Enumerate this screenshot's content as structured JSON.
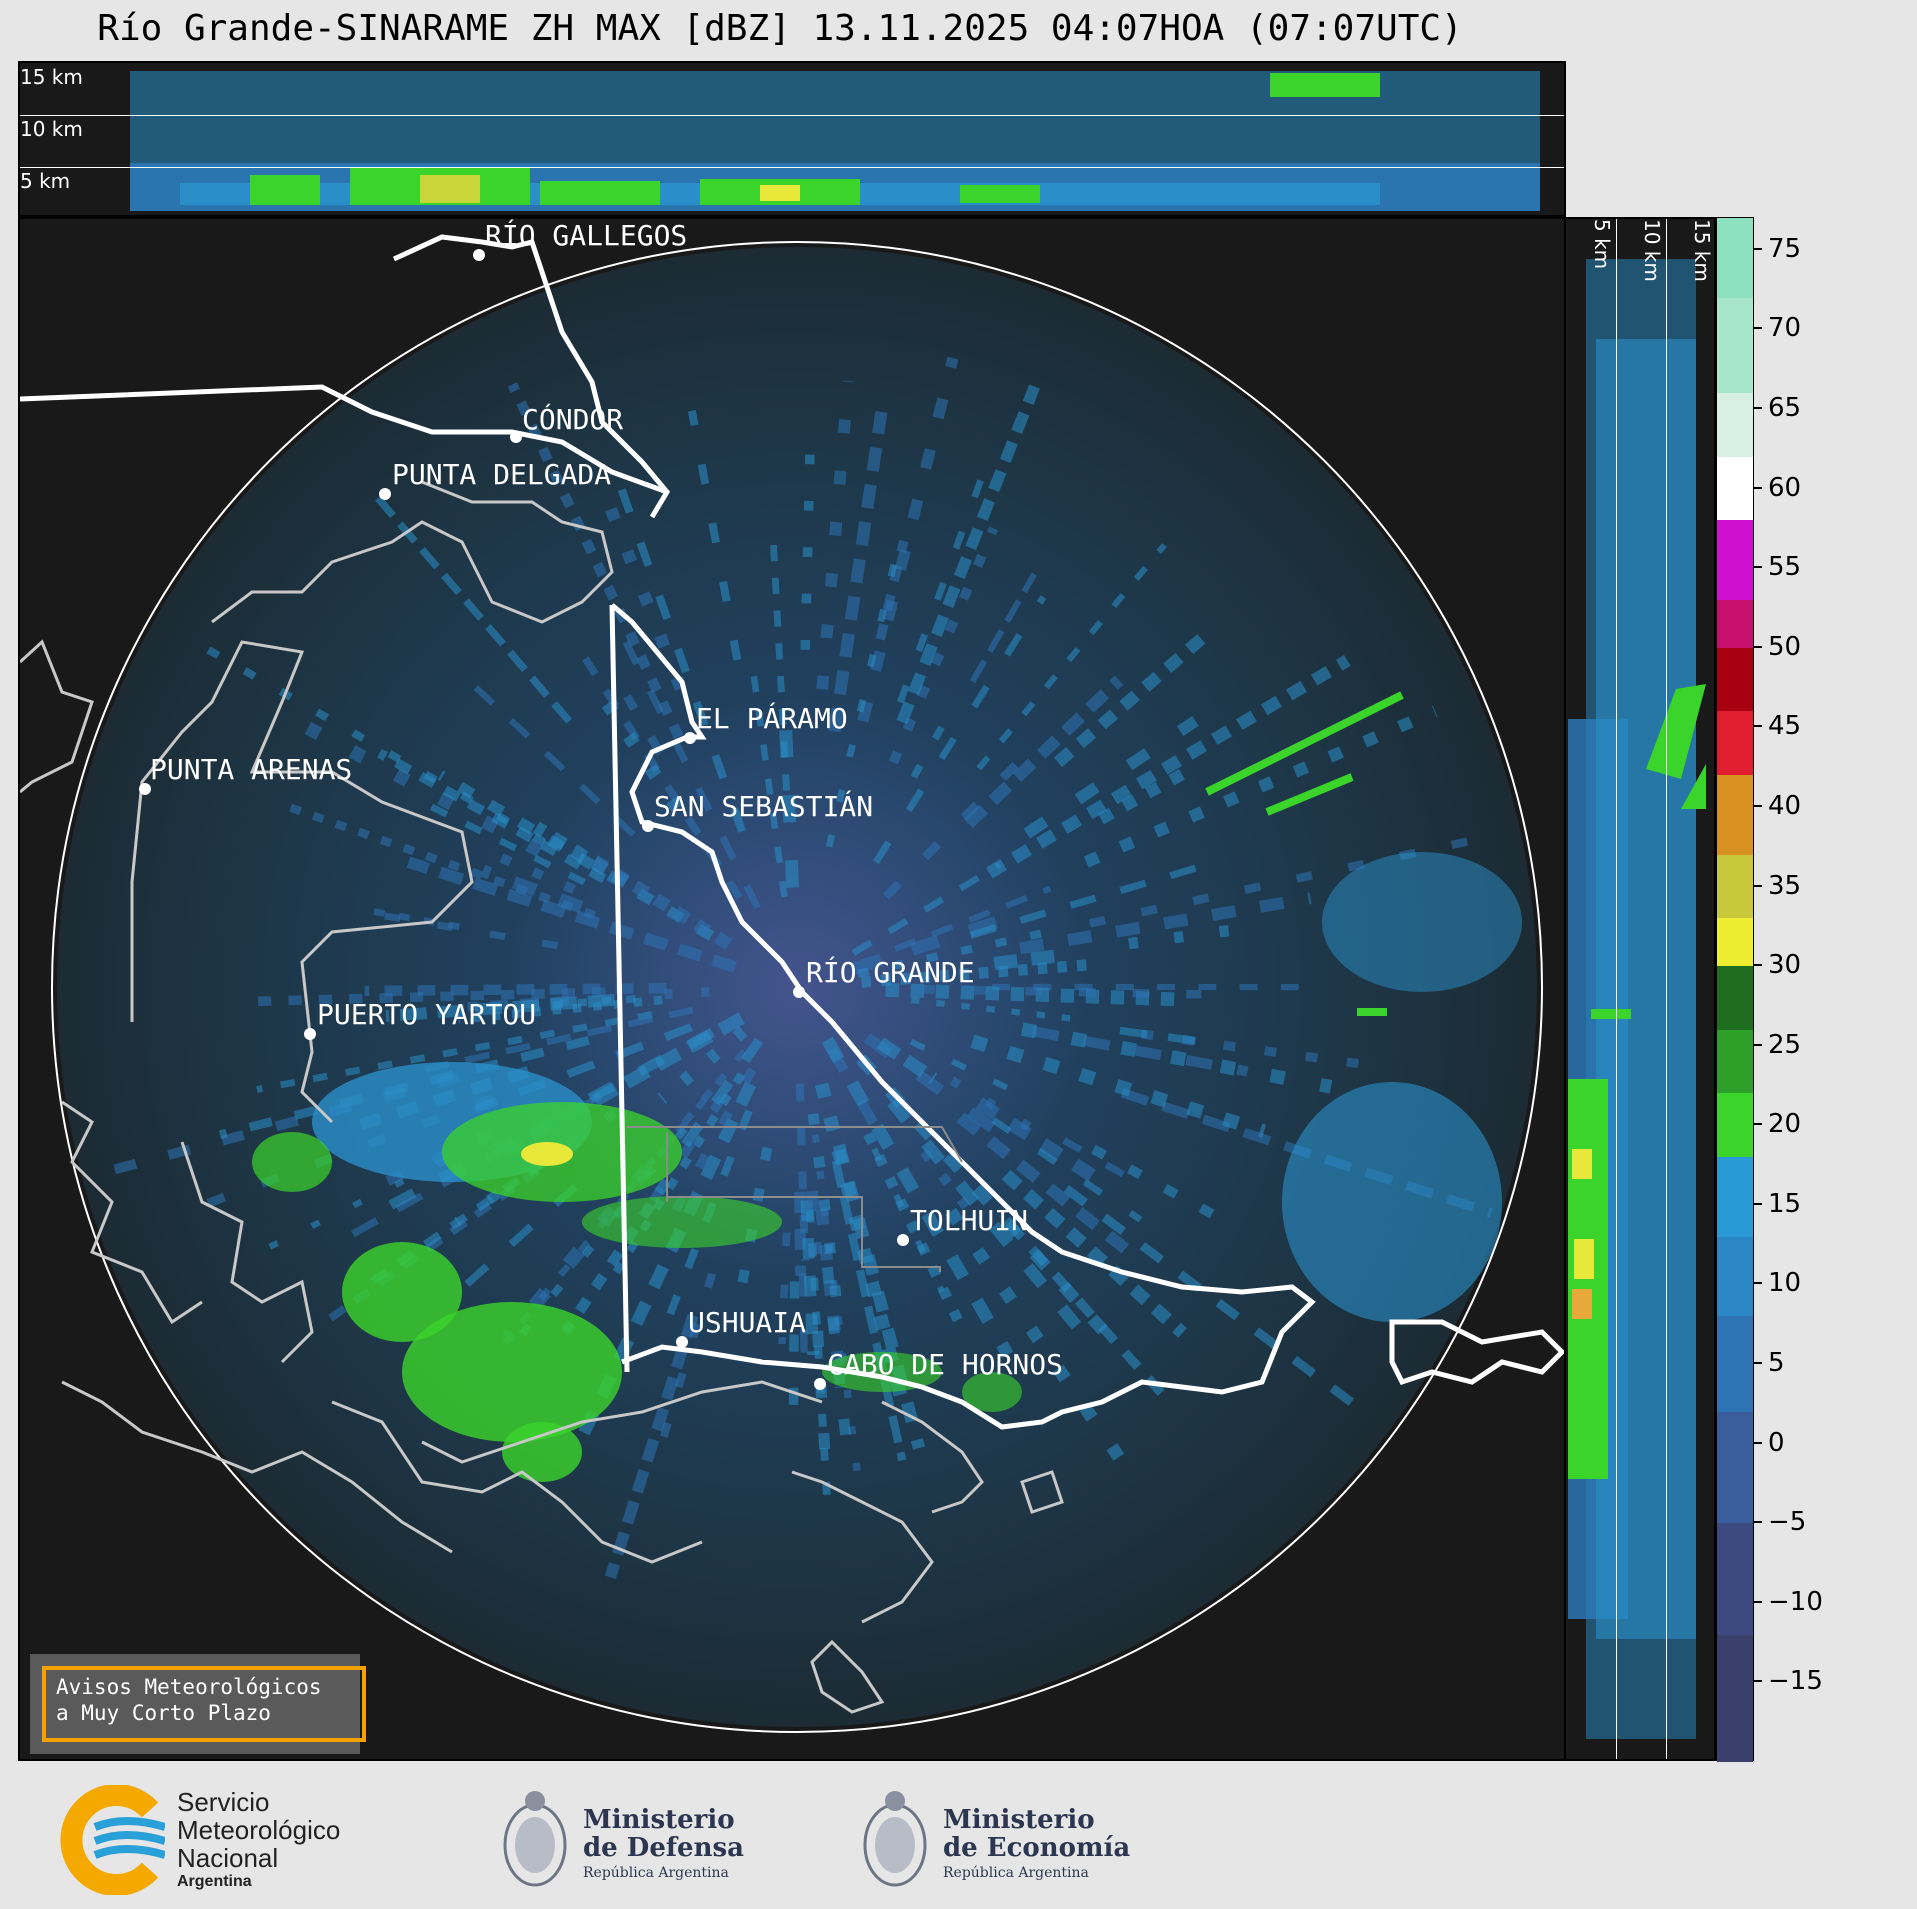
{
  "title": "Río Grande-SINARAME ZH MAX [dBZ] 13.11.2025 04:07HOA (07:07UTC)",
  "top_panel": {
    "levels": [
      "15 km",
      "10 km",
      "5 km"
    ]
  },
  "side_panel": {
    "levels": [
      "5 km",
      "10 km",
      "15 km"
    ]
  },
  "places": [
    {
      "name": "RÍO GALLEGOS"
    },
    {
      "name": "CÓNDOR"
    },
    {
      "name": "PUNTA DELGADA"
    },
    {
      "name": "PUNTA ARENAS"
    },
    {
      "name": "EL PÁRAMO"
    },
    {
      "name": "SAN SEBASTIÁN"
    },
    {
      "name": "RÍO GRANDE"
    },
    {
      "name": "PUERTO YARTOU"
    },
    {
      "name": "TOLHUIN"
    },
    {
      "name": "USHUAIA"
    },
    {
      "name": "CABO DE HORNOS"
    }
  ],
  "colorbar": {
    "unit": "dBZ",
    "ticks": [
      "75",
      "70",
      "65",
      "60",
      "55",
      "50",
      "45",
      "40",
      "35",
      "30",
      "25",
      "20",
      "15",
      "10",
      "5",
      "0",
      "−5",
      "−10",
      "−15"
    ],
    "range": [
      -20,
      77
    ],
    "colors": {
      "low": "#3b3f6e",
      "blue": "#2a8fc9",
      "green": "#3bd42a",
      "darkgreen": "#1c6e1c",
      "yellow": "#e8e83a",
      "orange": "#e08a1a",
      "red": "#c8102e",
      "magenta": "#e010e0",
      "white": "#ffffff",
      "mint": "#8de0c0"
    }
  },
  "warning": {
    "line1": "Avisos Meteorológicos",
    "line2": "a Muy Corto Plazo"
  },
  "logos": {
    "smn": {
      "line1": "Servicio",
      "line2": "Meteorológico",
      "line3": "Nacional",
      "line4": "Argentina"
    },
    "defensa": {
      "line1": "Ministerio",
      "line2": "de Defensa",
      "line3": "República Argentina"
    },
    "economia": {
      "line1": "Ministerio",
      "line2": "de Economía",
      "line3": "República Argentina"
    }
  }
}
